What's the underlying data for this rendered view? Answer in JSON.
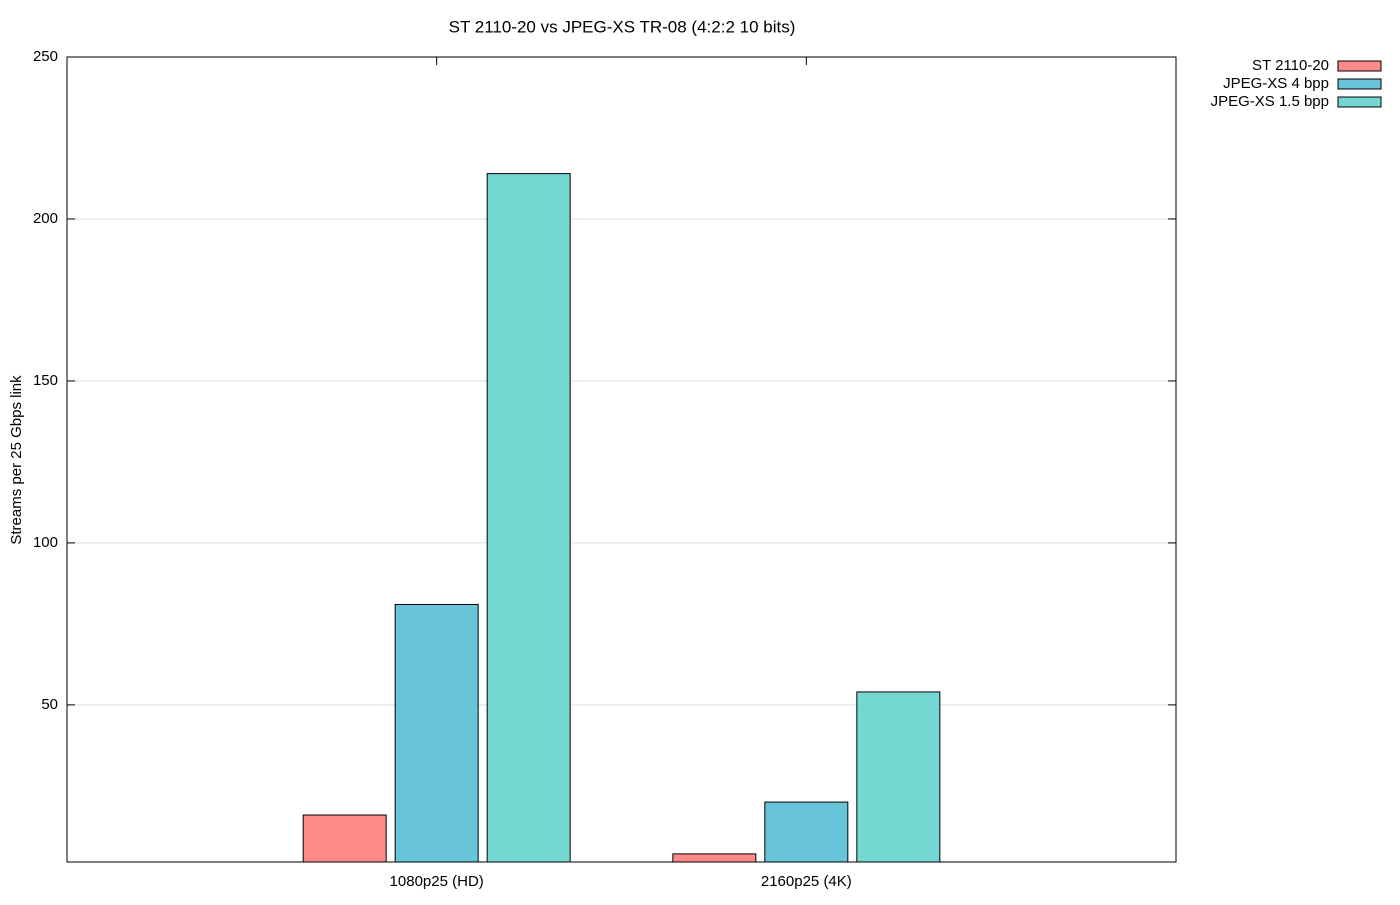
{
  "chart_data": {
    "type": "bar",
    "title": "ST 2110-20 vs JPEG-XS TR-08 (4:2:2 10 bits)",
    "y_label": "Streams per 25 Gbps link",
    "categories": [
      "1080p25 (HD)",
      "2160p25 (4K)"
    ],
    "series": [
      {
        "name": "ST 2110-20",
        "color": "#ff8a8a",
        "values": [
          16,
          4
        ]
      },
      {
        "name": "JPEG-XS 4 bpp",
        "color": "#68c4d9",
        "values": [
          81,
          20
        ]
      },
      {
        "name": "JPEG-XS 1.5 bpp",
        "color": "#74d7d1",
        "values": [
          214,
          54
        ]
      }
    ],
    "ylim": [
      1.5,
      250
    ],
    "yticks": [
      50,
      100,
      150,
      200,
      250
    ],
    "grid": true,
    "legend": "top-right-outside"
  }
}
